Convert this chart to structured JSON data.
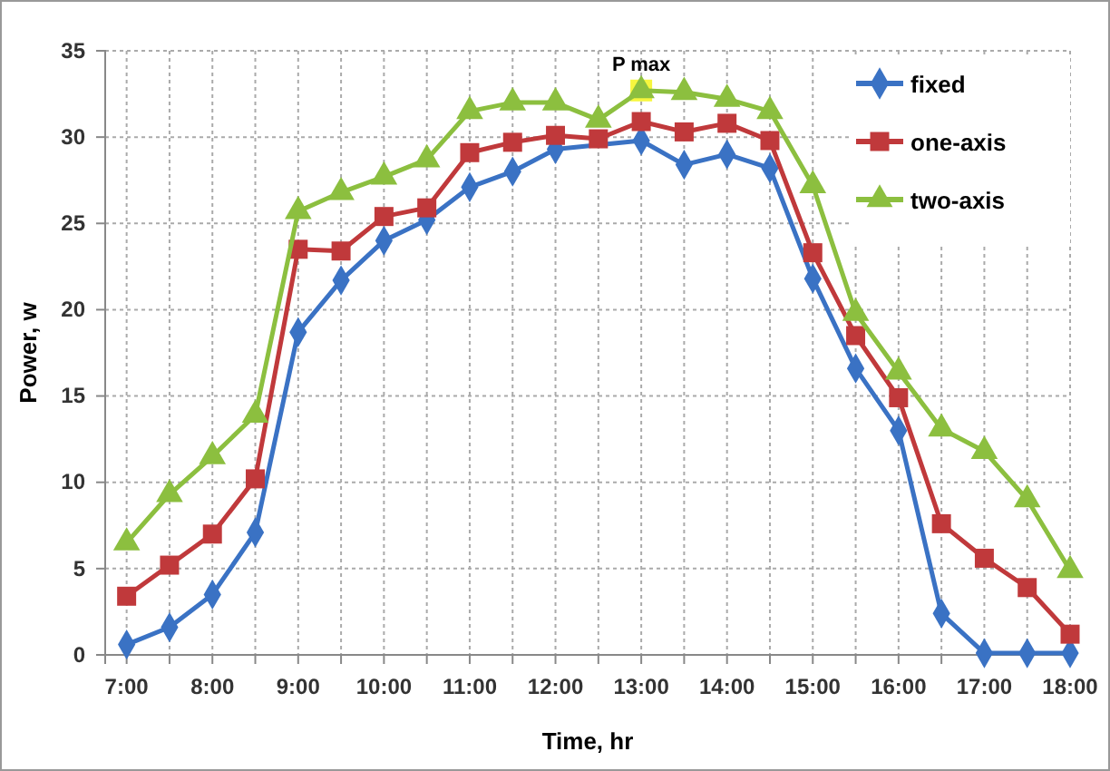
{
  "chart_data": {
    "type": "line",
    "xlabel": "Time, hr",
    "ylabel": "Power, w",
    "x": [
      7,
      7.5,
      8,
      8.5,
      9,
      9.5,
      10,
      10.5,
      11,
      11.5,
      12,
      12.5,
      13,
      13.5,
      14,
      14.5,
      15,
      15.5,
      16,
      16.5,
      17,
      17.5,
      18
    ],
    "series": [
      {
        "name": "fixed",
        "color": "#3a72c4",
        "marker": "diamond",
        "values": [
          0.6,
          1.6,
          3.5,
          7.1,
          18.7,
          21.7,
          24,
          25.2,
          27.1,
          28,
          29.3,
          null,
          29.8,
          28.4,
          29,
          28.2,
          21.8,
          16.6,
          13,
          2.4,
          0.1,
          0.1,
          0.1
        ]
      },
      {
        "name": "one-axis",
        "color": "#c0393b",
        "marker": "square",
        "values": [
          3.4,
          5.2,
          7,
          10.2,
          23.5,
          23.4,
          25.4,
          25.9,
          29.1,
          29.7,
          30.1,
          29.9,
          30.9,
          30.3,
          30.8,
          29.8,
          23.3,
          18.5,
          14.9,
          7.6,
          5.6,
          3.9,
          1.2
        ]
      },
      {
        "name": "two-axis",
        "color": "#8cbf3f",
        "marker": "triangle",
        "values": [
          6.5,
          9.3,
          11.5,
          13.9,
          25.7,
          26.8,
          27.7,
          28.7,
          31.5,
          32,
          32,
          31,
          32.7,
          32.6,
          32.2,
          31.5,
          27.2,
          19.8,
          16.4,
          13.1,
          11.8,
          9,
          4.9
        ]
      }
    ],
    "xlim": [
      6.75,
      18
    ],
    "xticks": [
      {
        "value": 7,
        "label": "7:00"
      },
      {
        "value": 7.5,
        "label": null
      },
      {
        "value": 8,
        "label": "8:00"
      },
      {
        "value": 8.5,
        "label": null
      },
      {
        "value": 9,
        "label": "9:00"
      },
      {
        "value": 9.5,
        "label": null
      },
      {
        "value": 10,
        "label": "10:00"
      },
      {
        "value": 10.5,
        "label": null
      },
      {
        "value": 11,
        "label": "11:00"
      },
      {
        "value": 11.5,
        "label": null
      },
      {
        "value": 12,
        "label": "12:00"
      },
      {
        "value": 12.5,
        "label": null
      },
      {
        "value": 13,
        "label": "13:00"
      },
      {
        "value": 13.5,
        "label": null
      },
      {
        "value": 14,
        "label": "14:00"
      },
      {
        "value": 14.5,
        "label": null
      },
      {
        "value": 15,
        "label": "15:00"
      },
      {
        "value": 15.5,
        "label": null
      },
      {
        "value": 16,
        "label": "16:00"
      },
      {
        "value": 16.5,
        "label": null
      },
      {
        "value": 17,
        "label": "17:00"
      },
      {
        "value": 17.5,
        "label": null
      },
      {
        "value": 18,
        "label": "18:00"
      }
    ],
    "ylim": [
      0,
      35
    ],
    "yticks": [
      0,
      5,
      10,
      15,
      20,
      25,
      30,
      35
    ],
    "grid": true,
    "legend": "top right",
    "line_style": "solid",
    "annotations": [
      {
        "text": "P max",
        "x": 13,
        "y": 32.7
      }
    ]
  }
}
